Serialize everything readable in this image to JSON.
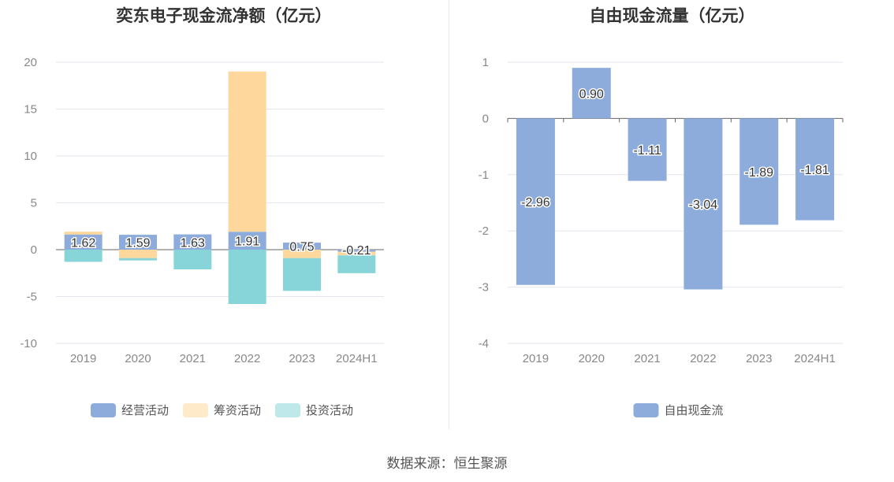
{
  "source_label": "数据来源：恒生聚源",
  "chart_data": [
    {
      "type": "bar",
      "stacked": true,
      "title": "奕东电子现金流净额（亿元）",
      "categories": [
        "2019",
        "2020",
        "2021",
        "2022",
        "2023",
        "2024H1"
      ],
      "ylim": [
        -10,
        20
      ],
      "yticks": [
        -10,
        -5,
        0,
        5,
        10,
        15,
        20
      ],
      "grid": true,
      "legend_position": "bottom",
      "series": [
        {
          "name": "经营活动",
          "color": "#8eacdb",
          "values": [
            1.62,
            1.59,
            1.63,
            1.91,
            0.75,
            -0.21
          ]
        },
        {
          "name": "筹资活动",
          "color": "#fdd79b",
          "values": [
            0.3,
            -0.9,
            0.0,
            17.1,
            -0.9,
            -0.4
          ]
        },
        {
          "name": "投资活动",
          "color": "#88d5d9",
          "values": [
            -1.3,
            -0.25,
            -2.1,
            -5.8,
            -3.5,
            -1.9
          ]
        }
      ],
      "data_labels": [
        "1.62",
        "1.59",
        "1.63",
        "1.91",
        "0.75",
        "-0.21"
      ]
    },
    {
      "type": "bar",
      "title": "自由现金流量（亿元）",
      "categories": [
        "2019",
        "2020",
        "2021",
        "2022",
        "2023",
        "2024H1"
      ],
      "ylim": [
        -4,
        1
      ],
      "yticks": [
        -4,
        -3,
        -2,
        -1,
        0,
        1
      ],
      "grid": true,
      "legend_position": "bottom",
      "series": [
        {
          "name": "自由现金流",
          "color": "#8eacdb",
          "values": [
            -2.96,
            0.9,
            -1.11,
            -3.04,
            -1.89,
            -1.81
          ]
        }
      ],
      "data_labels": [
        "-2.96",
        "0.90",
        "-1.11",
        "-3.04",
        "-1.89",
        "-1.81"
      ]
    }
  ]
}
